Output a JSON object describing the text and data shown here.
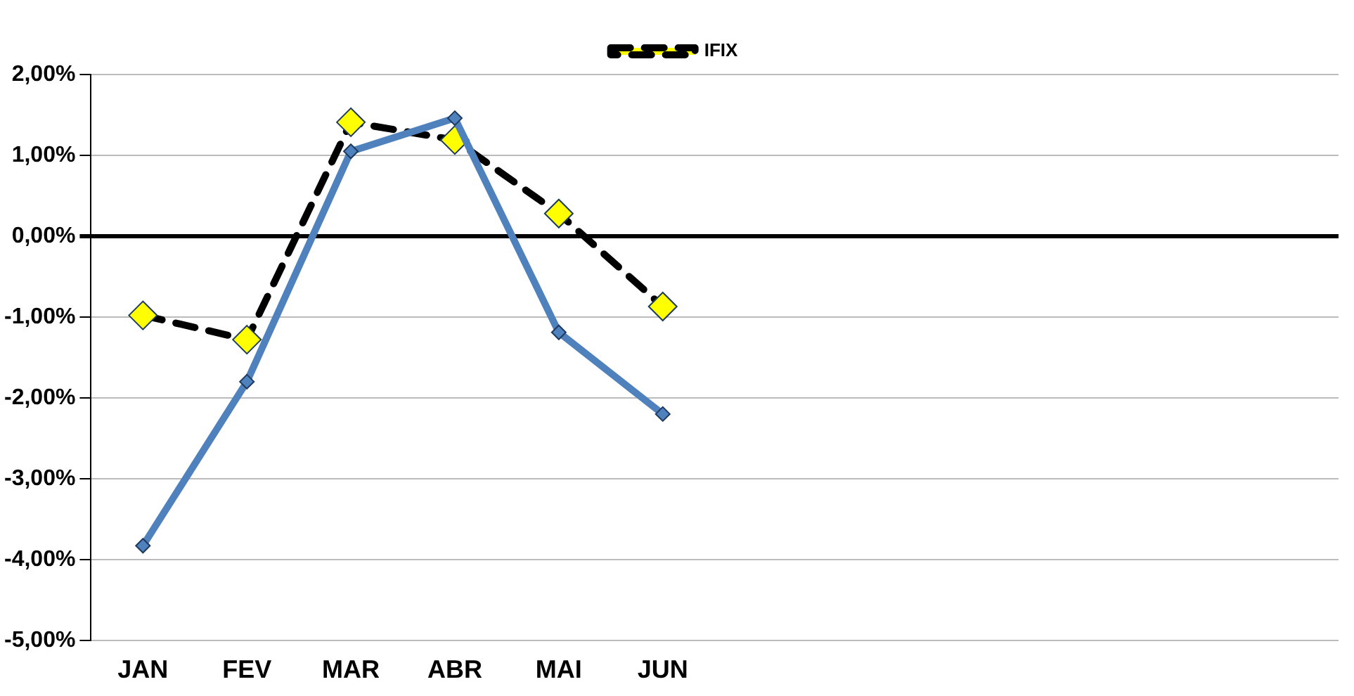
{
  "chart_data": {
    "type": "line",
    "categories": [
      "JAN",
      "FEV",
      "MAR",
      "ABR",
      "MAI",
      "JUN",
      null,
      null,
      null,
      null,
      null,
      null
    ],
    "series": [
      {
        "color": "#4f81bd",
        "values": [
          -3.83,
          -1.8,
          1.05,
          1.46,
          -1.19,
          -2.2,
          null,
          null,
          null,
          null,
          null,
          null
        ]
      },
      {
        "name": "IFIX",
        "color": "#000000",
        "line_style": "dashed",
        "values": [
          -0.98,
          -1.28,
          1.41,
          1.19,
          0.28,
          -0.87,
          null,
          null,
          null,
          null,
          null,
          null
        ]
      }
    ],
    "ylim": [
      -5,
      2
    ],
    "yticks": [
      {
        "value": -5,
        "label": "-5,00%"
      },
      {
        "value": -4,
        "label": "-4,00%"
      },
      {
        "value": -3,
        "label": "-3,00%"
      },
      {
        "value": -2,
        "label": "-2,00%"
      },
      {
        "value": -1,
        "label": "-1,00%"
      },
      {
        "value": 0,
        "label": "0,00%"
      },
      {
        "value": 1,
        "label": "1,00%"
      },
      {
        "value": 2,
        "label": "2,00%"
      }
    ],
    "grid": "y",
    "legend": "top",
    "marker": "diamond"
  }
}
